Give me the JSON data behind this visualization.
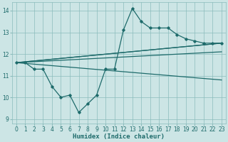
{
  "xlabel": "Humidex (Indice chaleur)",
  "bg_color": "#cce5e5",
  "grid_color": "#8bbcbc",
  "line_color": "#1e6b6b",
  "xlim": [
    -0.5,
    23.5
  ],
  "ylim": [
    8.8,
    14.4
  ],
  "xticks": [
    0,
    1,
    2,
    3,
    4,
    5,
    6,
    7,
    8,
    9,
    10,
    11,
    12,
    13,
    14,
    15,
    16,
    17,
    18,
    19,
    20,
    21,
    22,
    23
  ],
  "yticks": [
    9,
    10,
    11,
    12,
    13,
    14
  ],
  "line1_x": [
    0,
    1,
    2,
    3,
    4,
    5,
    6,
    7,
    8,
    9,
    10,
    11,
    12,
    13,
    14,
    15,
    16,
    17,
    18,
    19,
    20,
    21,
    22,
    23
  ],
  "line1_y": [
    11.6,
    11.6,
    11.3,
    11.3,
    10.5,
    10.0,
    10.1,
    9.3,
    9.7,
    10.1,
    11.3,
    11.3,
    13.1,
    14.1,
    13.5,
    13.2,
    13.2,
    13.2,
    12.9,
    12.7,
    12.6,
    12.5,
    12.5,
    12.5
  ],
  "trend1_x": [
    0,
    23
  ],
  "trend1_y": [
    11.6,
    12.5
  ],
  "trend2_x": [
    0,
    23
  ],
  "trend2_y": [
    11.6,
    12.5
  ],
  "trend3_x": [
    0,
    23
  ],
  "trend3_y": [
    11.6,
    10.8
  ],
  "trend4_x": [
    0,
    23
  ],
  "trend4_y": [
    11.6,
    12.1
  ]
}
